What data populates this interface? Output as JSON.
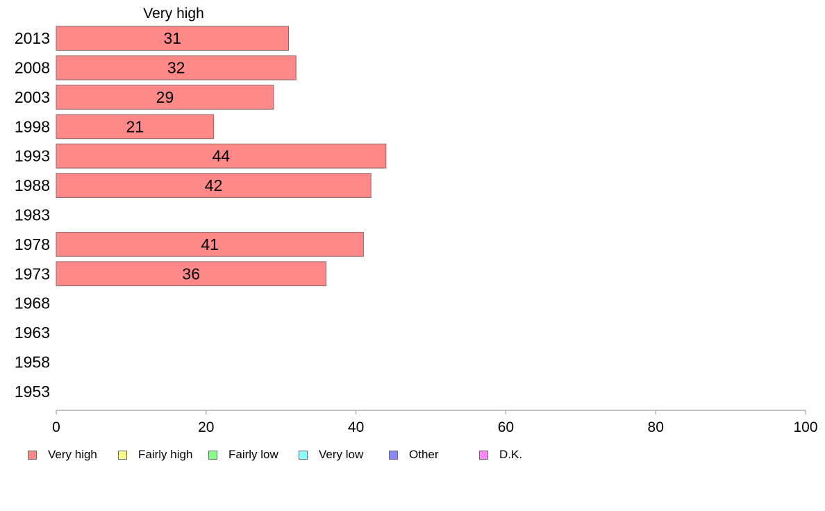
{
  "chart_data": {
    "type": "bar",
    "orientation": "horizontal",
    "stacked": true,
    "title": "Very high",
    "categories": [
      "2013",
      "2008",
      "2003",
      "1998",
      "1993",
      "1988",
      "1983",
      "1978",
      "1973",
      "1968",
      "1963",
      "1958",
      "1953"
    ],
    "series": [
      {
        "name": "Very high",
        "color": "#ff8888",
        "values": [
          31,
          32,
          29,
          21,
          44,
          42,
          null,
          41,
          36,
          null,
          null,
          null,
          null
        ]
      }
    ],
    "xlim": [
      0,
      100
    ],
    "xticks": [
      0,
      20,
      40,
      60,
      80,
      100
    ],
    "grid": false
  },
  "legend": {
    "position": "bottom",
    "items": [
      {
        "label": "Very high",
        "color": "#ff8888"
      },
      {
        "label": "Fairly high",
        "color": "#ffff88"
      },
      {
        "label": "Fairly low",
        "color": "#88ff88"
      },
      {
        "label": "Very low",
        "color": "#88ffff"
      },
      {
        "label": "Other",
        "color": "#8888ff"
      },
      {
        "label": "D.K.",
        "color": "#ff88ff"
      }
    ]
  }
}
